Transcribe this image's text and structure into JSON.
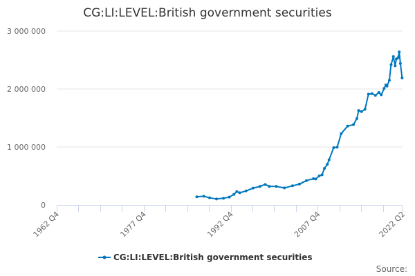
{
  "chart_data": {
    "type": "line",
    "title": "CG:LI:LEVEL:British government securities",
    "xlabel": "",
    "ylabel": "",
    "xlim": [
      1962.75,
      2022.375
    ],
    "ylim": [
      0,
      3000000
    ],
    "grid": true,
    "yticks": [
      0,
      1000000,
      2000000,
      3000000
    ],
    "ytick_labels": [
      "0",
      "1 000 000",
      "2 000 000",
      "3 000 000"
    ],
    "xticks": [
      1962.75,
      1977.75,
      1992.75,
      2007.75,
      2022.375
    ],
    "xtick_labels": [
      "1962 Q4",
      "1977 Q4",
      "1992 Q4",
      "2007 Q4",
      "2022 Q2"
    ],
    "legend_position": "bottom",
    "series": [
      {
        "name": "CG:LI:LEVEL:British government securities",
        "color": "#0077be",
        "x": [
          1986.9,
          1988.1,
          1989.1,
          1990.3,
          1991.5,
          1992.5,
          1993.3,
          1993.8,
          1994.3,
          1995.4,
          1996.6,
          1997.8,
          1998.7,
          1999.4,
          2000.6,
          2002.0,
          2003.4,
          2004.6,
          2005.8,
          2007.0,
          2007.4,
          2008.0,
          2008.5,
          2008.9,
          2009.4,
          2009.7,
          2010.5,
          2011.1,
          2011.8,
          2012.9,
          2013.9,
          2014.5,
          2014.8,
          2015.3,
          2015.9,
          2016.5,
          2017.1,
          2017.7,
          2018.3,
          2018.7,
          2019.2,
          2019.5,
          2019.7,
          2020.1,
          2020.4,
          2020.8,
          2021.1,
          2021.3,
          2021.6,
          2021.8,
          2022.0,
          2022.3
        ],
        "values": [
          140000,
          150000,
          123000,
          103000,
          115000,
          135000,
          182000,
          230000,
          210000,
          242000,
          290000,
          320000,
          353000,
          320000,
          320000,
          293000,
          330000,
          360000,
          420000,
          452000,
          448000,
          500000,
          520000,
          630000,
          700000,
          777000,
          988000,
          996000,
          1230000,
          1360000,
          1385000,
          1490000,
          1630000,
          1610000,
          1650000,
          1910000,
          1920000,
          1890000,
          1940000,
          1900000,
          2010000,
          2070000,
          2050000,
          2150000,
          2420000,
          2560000,
          2400000,
          2520000,
          2540000,
          2640000,
          2440000,
          2190000
        ]
      }
    ]
  },
  "source_label": "Source:"
}
